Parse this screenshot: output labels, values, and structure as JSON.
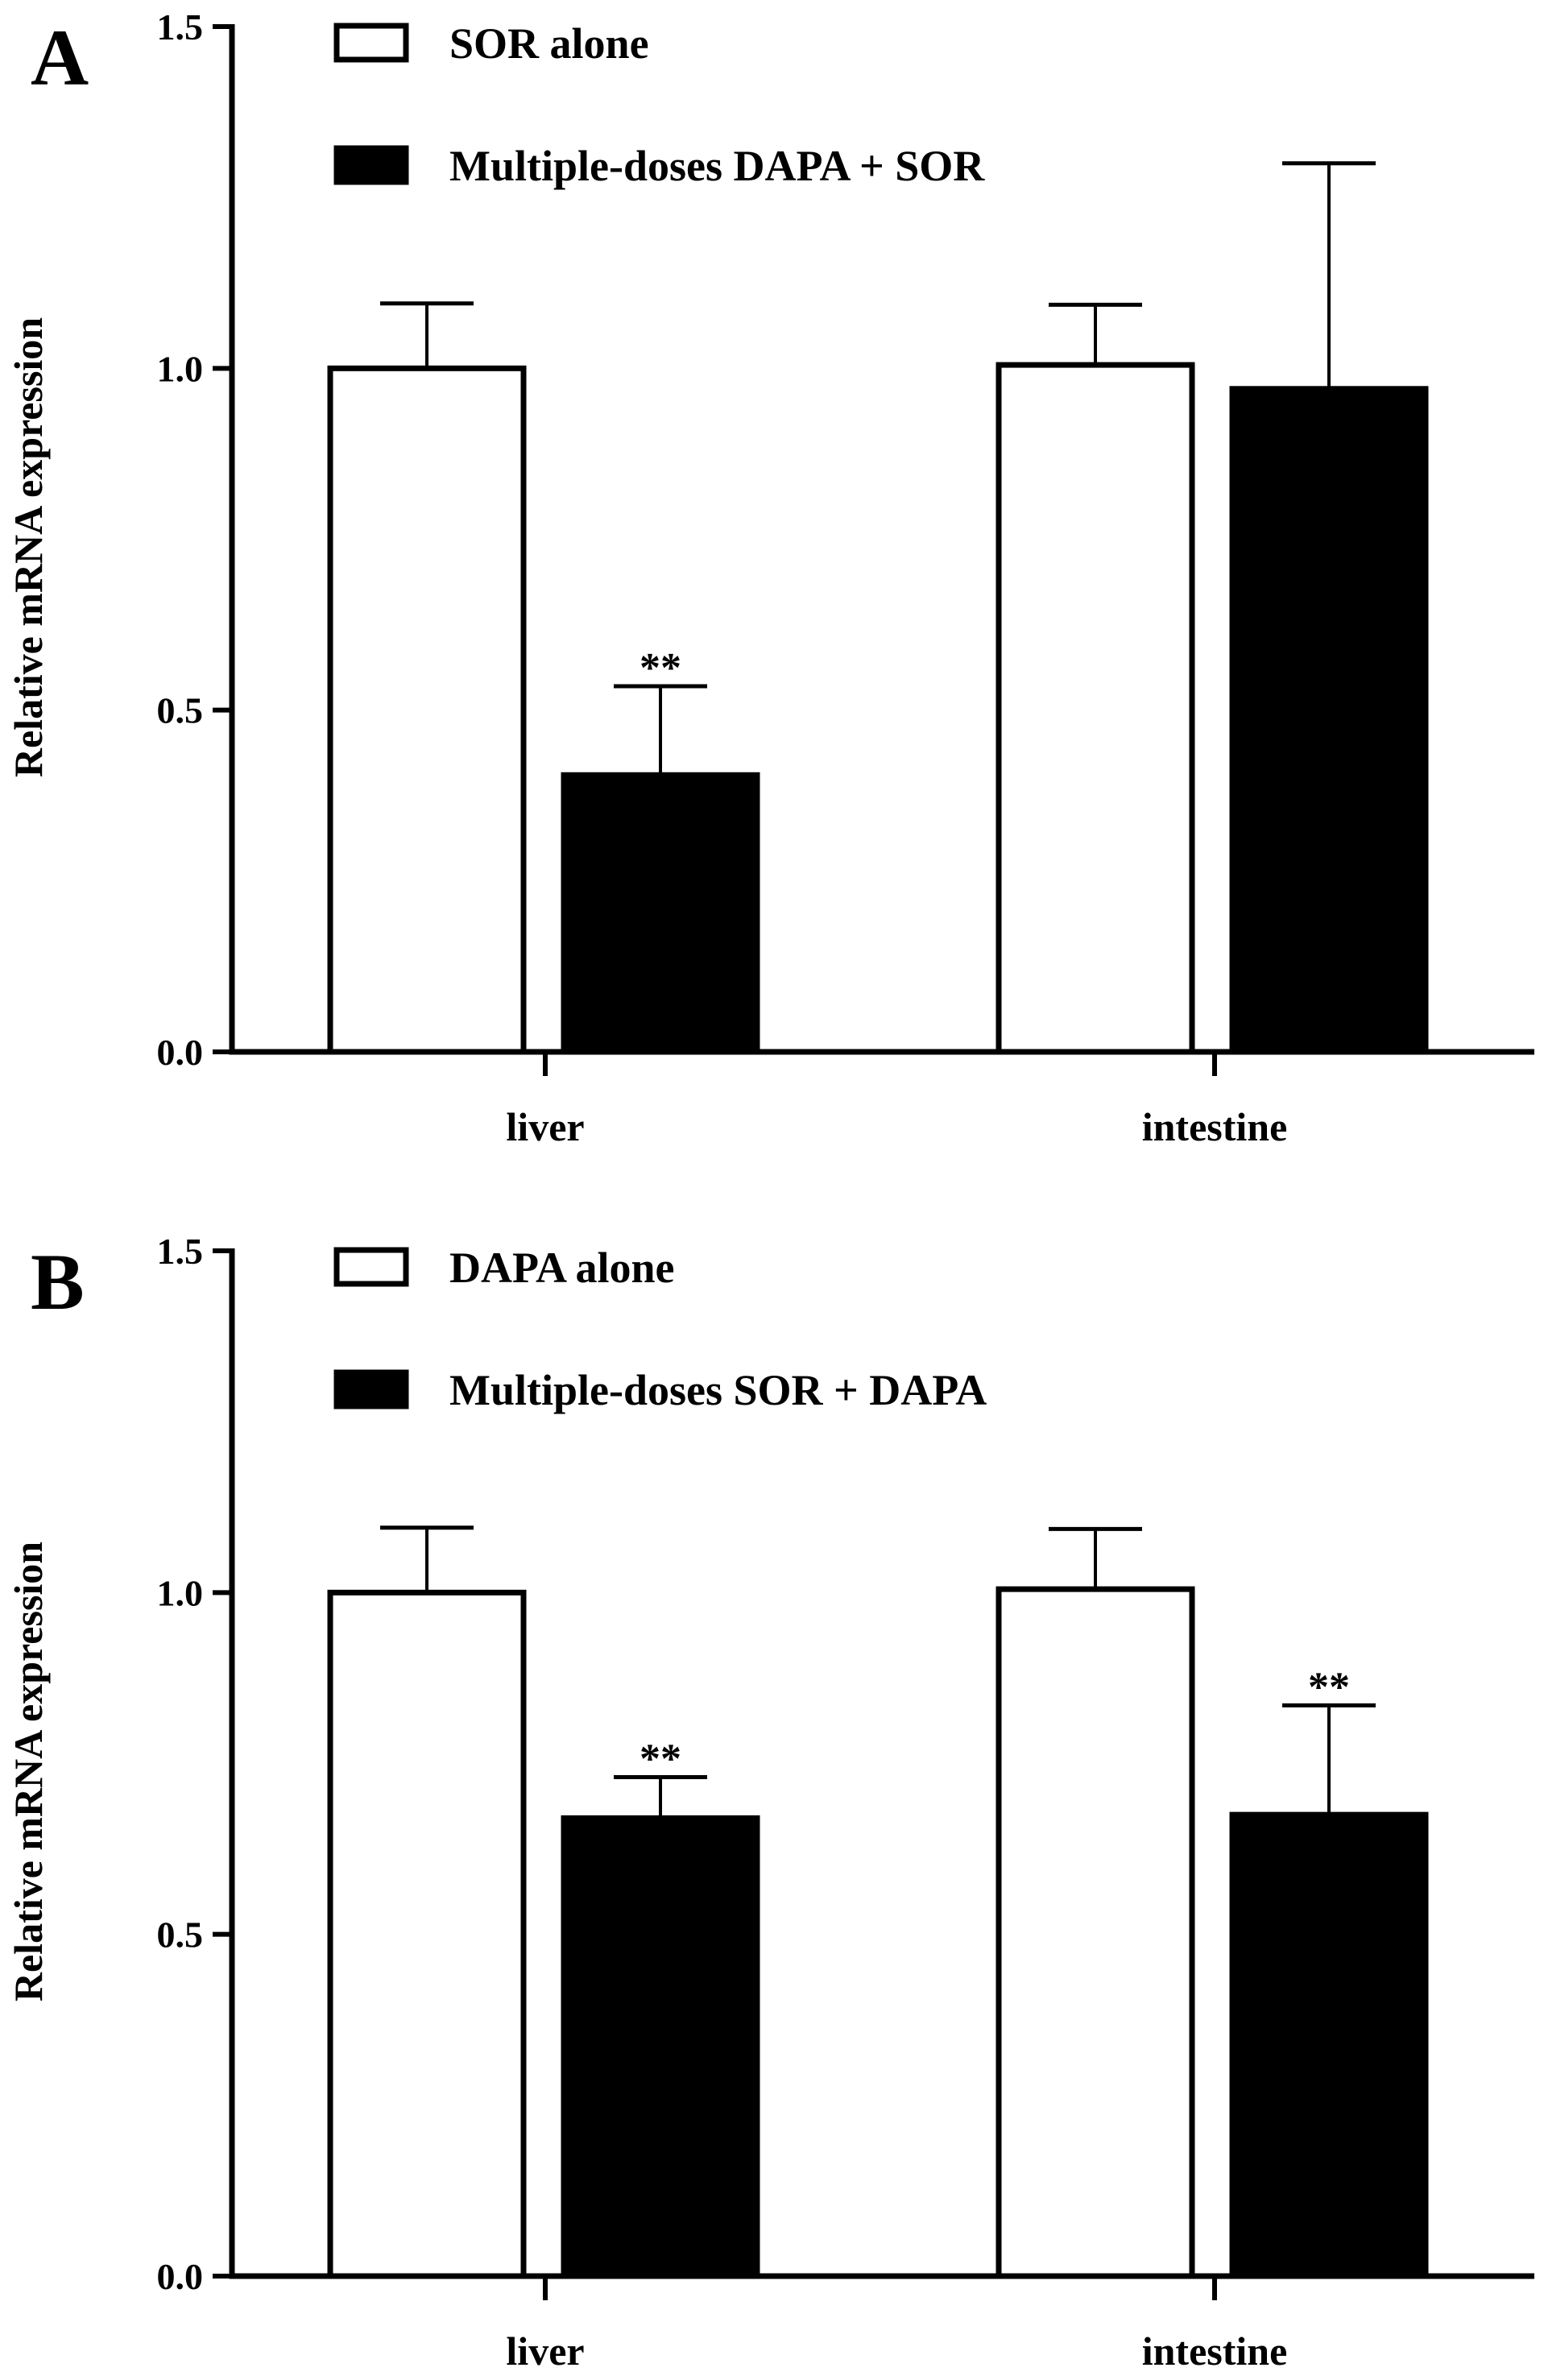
{
  "chart_data": [
    {
      "type": "bar",
      "panel_label": "A",
      "ylabel": "Relative mRNA expression",
      "xlabel": "",
      "ylim": [
        0,
        1.5
      ],
      "yticks": [
        "0.0",
        "0.5",
        "1.0",
        "1.5"
      ],
      "categories": [
        "liver",
        "intestine"
      ],
      "series": [
        {
          "name": "SOR alone",
          "fill": "#ffffff",
          "values": [
            1.0,
            1.005
          ],
          "errors": [
            0.095,
            0.088
          ],
          "significance": [
            "",
            ""
          ]
        },
        {
          "name": "Multiple-doses DAPA + SOR",
          "fill": "#000000",
          "values": [
            0.405,
            0.97
          ],
          "errors": [
            0.13,
            0.33
          ],
          "significance": [
            "**",
            ""
          ]
        }
      ],
      "legend_position": "top-left",
      "grid": false
    },
    {
      "type": "bar",
      "panel_label": "B",
      "ylabel": "Relative mRNA expression",
      "xlabel": "",
      "ylim": [
        0,
        1.5
      ],
      "yticks": [
        "0.0",
        "0.5",
        "1.0",
        "1.5"
      ],
      "categories": [
        "liver",
        "intestine"
      ],
      "series": [
        {
          "name": "DAPA alone",
          "fill": "#ffffff",
          "values": [
            1.0,
            1.005
          ],
          "errors": [
            0.095,
            0.088
          ],
          "significance": [
            "",
            ""
          ]
        },
        {
          "name": "Multiple-doses SOR + DAPA",
          "fill": "#000000",
          "values": [
            0.67,
            0.675
          ],
          "errors": [
            0.06,
            0.16
          ],
          "significance": [
            "**",
            "**"
          ]
        }
      ],
      "legend_position": "top-left",
      "grid": false
    }
  ]
}
